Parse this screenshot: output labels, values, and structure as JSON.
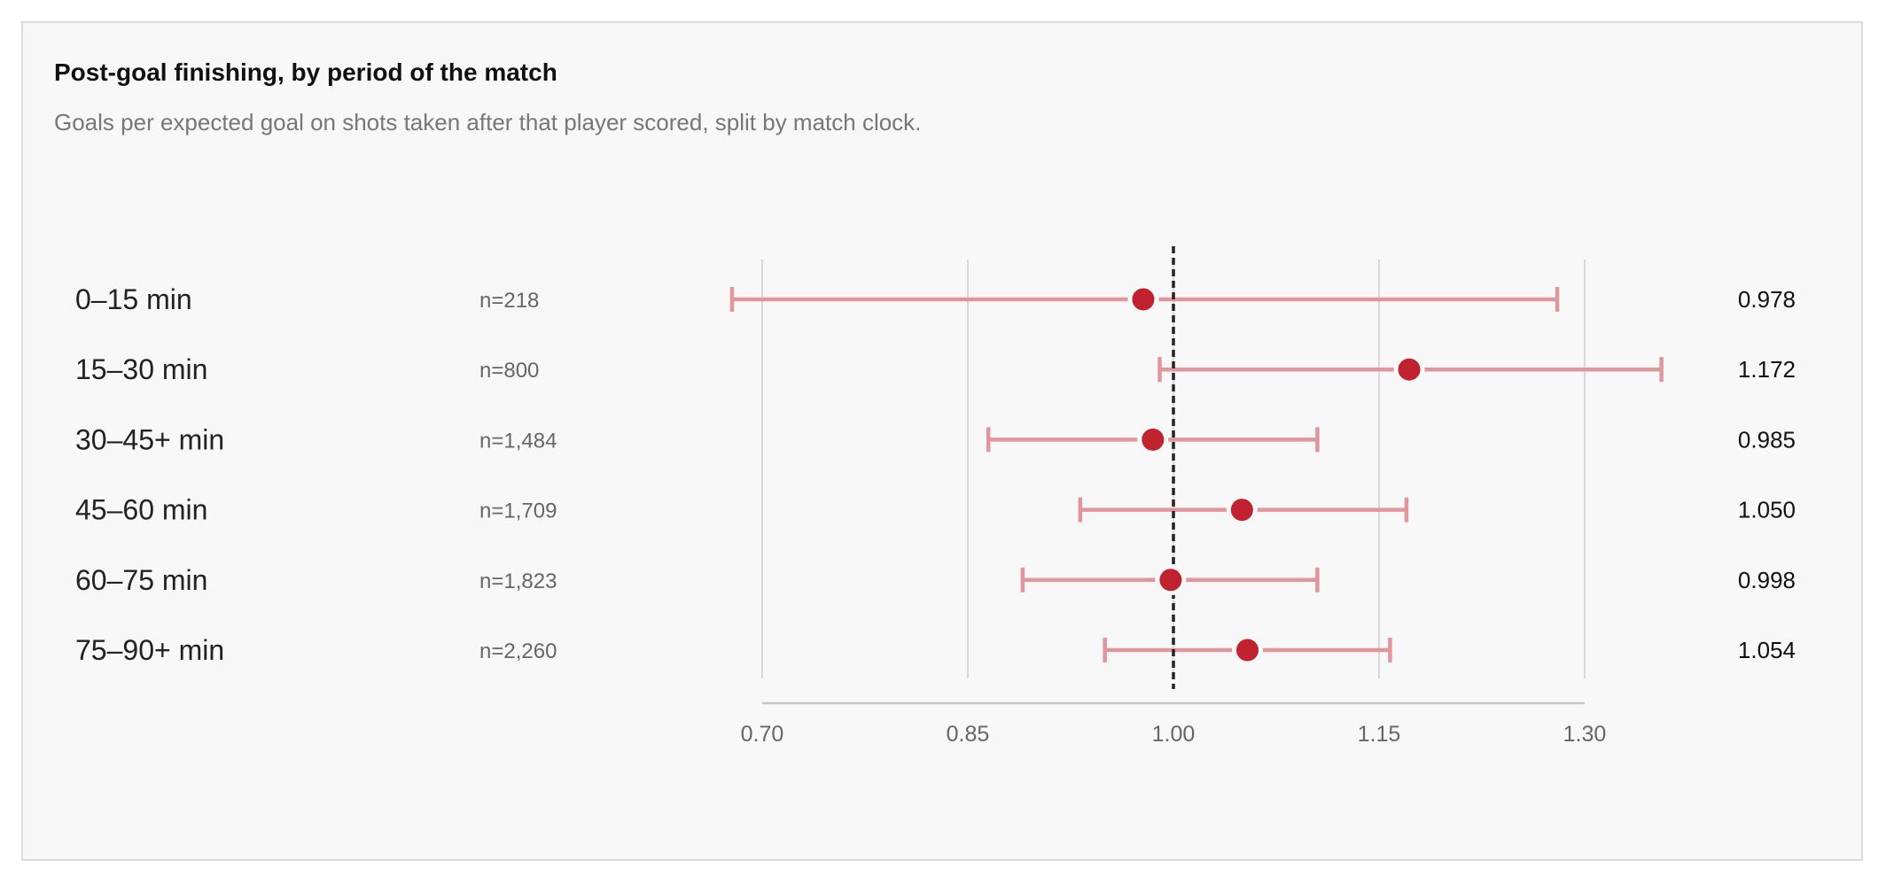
{
  "chart_data": {
    "type": "forest",
    "title": "Post-goal finishing, by period of the match",
    "subtitle": "Goals per expected goal on shots taken after that player scored, split by match clock.",
    "xlim": [
      0.7,
      1.3
    ],
    "x_ticks": [
      0.7,
      0.85,
      1.0,
      1.15,
      1.3
    ],
    "x_tick_labels": [
      "0.70",
      "0.85",
      "1.00",
      "1.15",
      "1.30"
    ],
    "reference_line": 1.0,
    "grid": true,
    "rows": [
      {
        "label": "0–15 min",
        "n_label": "n=218",
        "value": 0.978,
        "value_label": "0.978",
        "lo": 0.678,
        "hi": 1.28
      },
      {
        "label": "15–30 min",
        "n_label": "n=800",
        "value": 1.172,
        "value_label": "1.172",
        "lo": 0.99,
        "hi": 1.356
      },
      {
        "label": "30–45+ min",
        "n_label": "n=1,484",
        "value": 0.985,
        "value_label": "0.985",
        "lo": 0.865,
        "hi": 1.105
      },
      {
        "label": "45–60 min",
        "n_label": "n=1,709",
        "value": 1.05,
        "value_label": "1.050",
        "lo": 0.932,
        "hi": 1.17
      },
      {
        "label": "60–75 min",
        "n_label": "n=1,823",
        "value": 0.998,
        "value_label": "0.998",
        "lo": 0.89,
        "hi": 1.105
      },
      {
        "label": "75–90+ min",
        "n_label": "n=2,260",
        "value": 1.054,
        "value_label": "1.054",
        "lo": 0.95,
        "hi": 1.158
      }
    ],
    "colors": {
      "point": "#c0222f",
      "interval": "#e0969c",
      "reference": "#222222",
      "grid": "#d9d9d9",
      "axis": "#c8c8c8"
    }
  }
}
